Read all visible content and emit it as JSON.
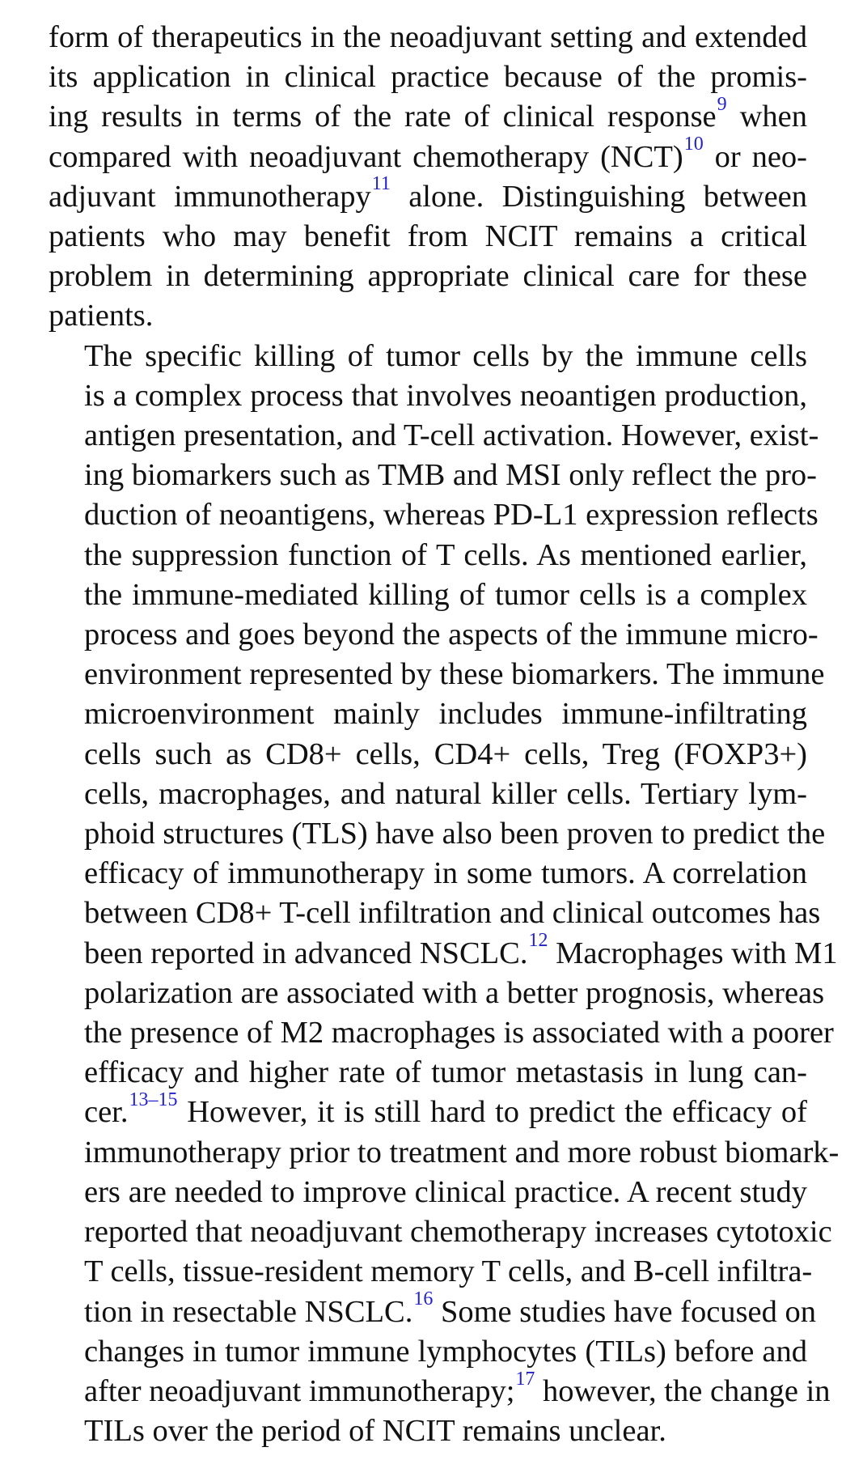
{
  "paragraphs": [
    {
      "id": "p1",
      "indent": false,
      "lines": [
        [
          {
            "t": "form of therapeutics in the neoadjuvant setting and extended"
          }
        ],
        [
          {
            "t": "its application in clinical practice because of the promis-"
          }
        ],
        [
          {
            "t": "ing results in terms of the rate of clinical response"
          },
          {
            "ref": "9"
          },
          {
            "t": " when"
          }
        ],
        [
          {
            "t": "compared with neoadjuvant chemotherapy (NCT)"
          },
          {
            "ref": "10"
          },
          {
            "t": " or neo-"
          }
        ],
        [
          {
            "t": "adjuvant immunotherapy"
          },
          {
            "ref": "11"
          },
          {
            "t": " alone. Distinguishing between"
          }
        ],
        [
          {
            "t": "patients who may benefit from NCIT remains a critical"
          }
        ],
        [
          {
            "t": "problem in determining appropriate clinical care for these"
          }
        ],
        [
          {
            "t": "patients."
          }
        ]
      ]
    },
    {
      "id": "p2",
      "indent": true,
      "lines": [
        [
          {
            "t": "The specific killing of tumor cells by the immune cells"
          }
        ],
        [
          {
            "t": "is a complex process that involves neoantigen production,"
          }
        ],
        [
          {
            "t": "antigen presentation, and T-cell activation. However, exist-"
          }
        ],
        [
          {
            "t": "ing biomarkers such as TMB and MSI only reflect the pro-"
          }
        ],
        [
          {
            "t": "duction of neoantigens, whereas PD-L1 expression reflects"
          }
        ],
        [
          {
            "t": "the suppression function of T cells. As mentioned earlier,"
          }
        ],
        [
          {
            "t": "the immune-mediated killing of tumor cells is a complex"
          }
        ],
        [
          {
            "t": "process and goes beyond the aspects of the immune micro-"
          }
        ],
        [
          {
            "t": "environment represented by these biomarkers. The immune"
          }
        ],
        [
          {
            "t": "microenvironment mainly includes immune-infiltrating"
          }
        ],
        [
          {
            "t": "cells such as CD8+ cells, CD4+ cells, Treg (FOXP3+)"
          }
        ],
        [
          {
            "t": "cells, macrophages, and natural killer cells. Tertiary lym-"
          }
        ],
        [
          {
            "t": "phoid structures (TLS) have also been proven to predict the"
          }
        ],
        [
          {
            "t": "efficacy of immunotherapy in some tumors. A correlation"
          }
        ],
        [
          {
            "t": "between CD8+ T-cell infiltration and clinical outcomes has"
          }
        ],
        [
          {
            "t": "been reported in advanced NSCLC."
          },
          {
            "ref": "12"
          },
          {
            "t": " Macrophages with M1"
          }
        ],
        [
          {
            "t": "polarization are associated with a better prognosis, whereas"
          }
        ],
        [
          {
            "t": "the presence of M2 macrophages is associated with a poorer"
          }
        ],
        [
          {
            "t": "efficacy and higher rate of tumor metastasis in lung can-"
          }
        ],
        [
          {
            "t": "cer."
          },
          {
            "ref": "13–15"
          },
          {
            "t": " However, it is still hard to predict the efficacy of"
          }
        ],
        [
          {
            "t": "immunotherapy prior to treatment and more robust biomark-"
          }
        ],
        [
          {
            "t": "ers are needed to improve clinical practice. A recent study"
          }
        ],
        [
          {
            "t": "reported that neoadjuvant chemotherapy increases cytotoxic"
          }
        ],
        [
          {
            "t": "T cells, tissue-resident memory T cells, and B-cell infiltra-"
          }
        ],
        [
          {
            "t": "tion in resectable NSCLC."
          },
          {
            "ref": "16"
          },
          {
            "t": " Some studies have focused on"
          }
        ],
        [
          {
            "t": "changes in tumor immune lymphocytes (TILs) before and"
          }
        ],
        [
          {
            "t": "after neoadjuvant immunotherapy;"
          },
          {
            "ref": "17"
          },
          {
            "t": " however, the change in"
          }
        ],
        [
          {
            "t": "TILs over the period of NCIT remains unclear."
          }
        ]
      ]
    }
  ]
}
